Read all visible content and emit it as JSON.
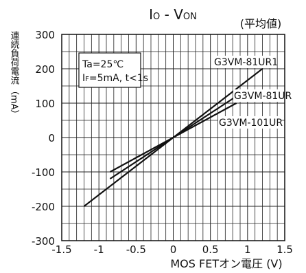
{
  "chart_data": {
    "type": "line",
    "title": "IO - VON",
    "title_main": "I",
    "title_sub": "O",
    "title_dash": " - ",
    "title_main2": "V",
    "title_sub2": "ON",
    "subtitle": "(平均値)",
    "xlabel": "MOS FETオン電圧 (V)",
    "ylabel": "連続負荷電流",
    "ylabel_unit": "︵mA︶",
    "xlim": [
      -1.5,
      1.5
    ],
    "ylim": [
      -300,
      300
    ],
    "x_ticks": [
      -1.5,
      -1.0,
      -0.5,
      0,
      0.5,
      1.0,
      1.5
    ],
    "x_tick_labels": [
      "-1.5",
      "-1",
      "-0.5",
      "0",
      "0.5",
      "1",
      "1.5"
    ],
    "y_ticks": [
      300,
      200,
      100,
      0,
      -100,
      -200,
      -300
    ],
    "y_tick_labels": [
      "300",
      "200",
      "100",
      "0",
      "-100",
      "-200",
      "-300"
    ],
    "grid": true,
    "conditions": {
      "line1": "Ta=25℃",
      "line2_main": "I",
      "line2_sub": "F",
      "line2_rest": "=5mA, t<1s"
    },
    "series": [
      {
        "name": "G3VM-81UR1",
        "x": [
          -1.2,
          1.2
        ],
        "y": [
          -200,
          200
        ]
      },
      {
        "name": "G3VM-81UR",
        "x": [
          -0.85,
          0.85
        ],
        "y": [
          -120,
          120
        ]
      },
      {
        "name": "G3VM-101UR",
        "x": [
          -0.85,
          0.85
        ],
        "y": [
          -100,
          100
        ]
      }
    ]
  }
}
